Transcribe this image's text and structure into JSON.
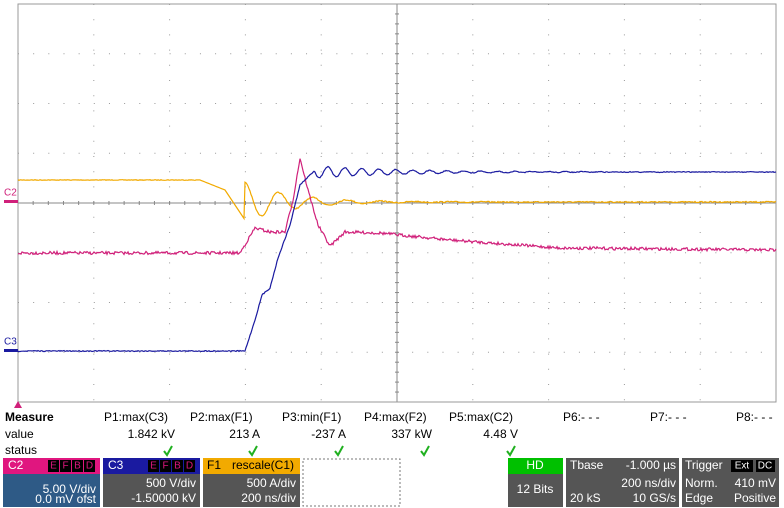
{
  "markers": {
    "c2": "C2",
    "c3": "C3"
  },
  "measure": {
    "label": "Measure",
    "columns": [
      "P1:max(C3)",
      "P2:max(F1)",
      "P3:min(F1)",
      "P4:max(F2)",
      "P5:max(C2)",
      "P6:- - -",
      "P7:- - -",
      "P8:- - -"
    ],
    "value_label": "value",
    "values": [
      "1.842 kV",
      "213 A",
      "-237 A",
      "337 kW",
      "4.48 V"
    ],
    "status_label": "status"
  },
  "channels": [
    {
      "name": "C2",
      "badges": [
        "E",
        "F",
        "B",
        "D"
      ],
      "lines": [
        "5.00 V/div",
        "0.0 mV ofst"
      ]
    },
    {
      "name": "C3",
      "badges": [
        "E",
        "F",
        "B",
        "D"
      ],
      "lines": [
        "500 V/div",
        "-1.50000 kV"
      ]
    },
    {
      "name": "F1",
      "extra": "rescale(C1)",
      "lines": [
        "500 A/div",
        "200 ns/div"
      ]
    }
  ],
  "hd": {
    "name": "HD",
    "line": "12 Bits"
  },
  "timebase": {
    "name": "Tbase",
    "delay": "-1.000 µs",
    "lines": [
      "200 ns/div",
      "20 kS",
      "10 GS/s"
    ]
  },
  "trigger": {
    "name": "Trigger",
    "badges": [
      "Ext",
      "DC"
    ],
    "lines": [
      "Norm.",
      "410 mV",
      "Edge",
      "Positive"
    ]
  }
}
